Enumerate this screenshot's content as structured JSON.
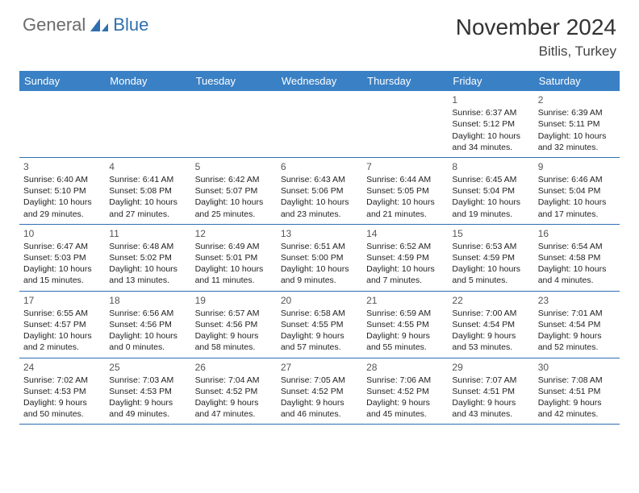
{
  "logo": {
    "general": "General",
    "blue": "Blue"
  },
  "title": "November 2024",
  "location": "Bitlis, Turkey",
  "colors": {
    "header_bg": "#3a80c4",
    "border": "#2f6fb0",
    "logo_gray": "#6b6b6b",
    "logo_blue": "#2f6fb0"
  },
  "dayNames": [
    "Sunday",
    "Monday",
    "Tuesday",
    "Wednesday",
    "Thursday",
    "Friday",
    "Saturday"
  ],
  "weeks": [
    [
      {
        "n": "",
        "sr": "",
        "ss": "",
        "dl": ""
      },
      {
        "n": "",
        "sr": "",
        "ss": "",
        "dl": ""
      },
      {
        "n": "",
        "sr": "",
        "ss": "",
        "dl": ""
      },
      {
        "n": "",
        "sr": "",
        "ss": "",
        "dl": ""
      },
      {
        "n": "",
        "sr": "",
        "ss": "",
        "dl": ""
      },
      {
        "n": "1",
        "sr": "Sunrise: 6:37 AM",
        "ss": "Sunset: 5:12 PM",
        "dl": "Daylight: 10 hours and 34 minutes."
      },
      {
        "n": "2",
        "sr": "Sunrise: 6:39 AM",
        "ss": "Sunset: 5:11 PM",
        "dl": "Daylight: 10 hours and 32 minutes."
      }
    ],
    [
      {
        "n": "3",
        "sr": "Sunrise: 6:40 AM",
        "ss": "Sunset: 5:10 PM",
        "dl": "Daylight: 10 hours and 29 minutes."
      },
      {
        "n": "4",
        "sr": "Sunrise: 6:41 AM",
        "ss": "Sunset: 5:08 PM",
        "dl": "Daylight: 10 hours and 27 minutes."
      },
      {
        "n": "5",
        "sr": "Sunrise: 6:42 AM",
        "ss": "Sunset: 5:07 PM",
        "dl": "Daylight: 10 hours and 25 minutes."
      },
      {
        "n": "6",
        "sr": "Sunrise: 6:43 AM",
        "ss": "Sunset: 5:06 PM",
        "dl": "Daylight: 10 hours and 23 minutes."
      },
      {
        "n": "7",
        "sr": "Sunrise: 6:44 AM",
        "ss": "Sunset: 5:05 PM",
        "dl": "Daylight: 10 hours and 21 minutes."
      },
      {
        "n": "8",
        "sr": "Sunrise: 6:45 AM",
        "ss": "Sunset: 5:04 PM",
        "dl": "Daylight: 10 hours and 19 minutes."
      },
      {
        "n": "9",
        "sr": "Sunrise: 6:46 AM",
        "ss": "Sunset: 5:04 PM",
        "dl": "Daylight: 10 hours and 17 minutes."
      }
    ],
    [
      {
        "n": "10",
        "sr": "Sunrise: 6:47 AM",
        "ss": "Sunset: 5:03 PM",
        "dl": "Daylight: 10 hours and 15 minutes."
      },
      {
        "n": "11",
        "sr": "Sunrise: 6:48 AM",
        "ss": "Sunset: 5:02 PM",
        "dl": "Daylight: 10 hours and 13 minutes."
      },
      {
        "n": "12",
        "sr": "Sunrise: 6:49 AM",
        "ss": "Sunset: 5:01 PM",
        "dl": "Daylight: 10 hours and 11 minutes."
      },
      {
        "n": "13",
        "sr": "Sunrise: 6:51 AM",
        "ss": "Sunset: 5:00 PM",
        "dl": "Daylight: 10 hours and 9 minutes."
      },
      {
        "n": "14",
        "sr": "Sunrise: 6:52 AM",
        "ss": "Sunset: 4:59 PM",
        "dl": "Daylight: 10 hours and 7 minutes."
      },
      {
        "n": "15",
        "sr": "Sunrise: 6:53 AM",
        "ss": "Sunset: 4:59 PM",
        "dl": "Daylight: 10 hours and 5 minutes."
      },
      {
        "n": "16",
        "sr": "Sunrise: 6:54 AM",
        "ss": "Sunset: 4:58 PM",
        "dl": "Daylight: 10 hours and 4 minutes."
      }
    ],
    [
      {
        "n": "17",
        "sr": "Sunrise: 6:55 AM",
        "ss": "Sunset: 4:57 PM",
        "dl": "Daylight: 10 hours and 2 minutes."
      },
      {
        "n": "18",
        "sr": "Sunrise: 6:56 AM",
        "ss": "Sunset: 4:56 PM",
        "dl": "Daylight: 10 hours and 0 minutes."
      },
      {
        "n": "19",
        "sr": "Sunrise: 6:57 AM",
        "ss": "Sunset: 4:56 PM",
        "dl": "Daylight: 9 hours and 58 minutes."
      },
      {
        "n": "20",
        "sr": "Sunrise: 6:58 AM",
        "ss": "Sunset: 4:55 PM",
        "dl": "Daylight: 9 hours and 57 minutes."
      },
      {
        "n": "21",
        "sr": "Sunrise: 6:59 AM",
        "ss": "Sunset: 4:55 PM",
        "dl": "Daylight: 9 hours and 55 minutes."
      },
      {
        "n": "22",
        "sr": "Sunrise: 7:00 AM",
        "ss": "Sunset: 4:54 PM",
        "dl": "Daylight: 9 hours and 53 minutes."
      },
      {
        "n": "23",
        "sr": "Sunrise: 7:01 AM",
        "ss": "Sunset: 4:54 PM",
        "dl": "Daylight: 9 hours and 52 minutes."
      }
    ],
    [
      {
        "n": "24",
        "sr": "Sunrise: 7:02 AM",
        "ss": "Sunset: 4:53 PM",
        "dl": "Daylight: 9 hours and 50 minutes."
      },
      {
        "n": "25",
        "sr": "Sunrise: 7:03 AM",
        "ss": "Sunset: 4:53 PM",
        "dl": "Daylight: 9 hours and 49 minutes."
      },
      {
        "n": "26",
        "sr": "Sunrise: 7:04 AM",
        "ss": "Sunset: 4:52 PM",
        "dl": "Daylight: 9 hours and 47 minutes."
      },
      {
        "n": "27",
        "sr": "Sunrise: 7:05 AM",
        "ss": "Sunset: 4:52 PM",
        "dl": "Daylight: 9 hours and 46 minutes."
      },
      {
        "n": "28",
        "sr": "Sunrise: 7:06 AM",
        "ss": "Sunset: 4:52 PM",
        "dl": "Daylight: 9 hours and 45 minutes."
      },
      {
        "n": "29",
        "sr": "Sunrise: 7:07 AM",
        "ss": "Sunset: 4:51 PM",
        "dl": "Daylight: 9 hours and 43 minutes."
      },
      {
        "n": "30",
        "sr": "Sunrise: 7:08 AM",
        "ss": "Sunset: 4:51 PM",
        "dl": "Daylight: 9 hours and 42 minutes."
      }
    ]
  ]
}
